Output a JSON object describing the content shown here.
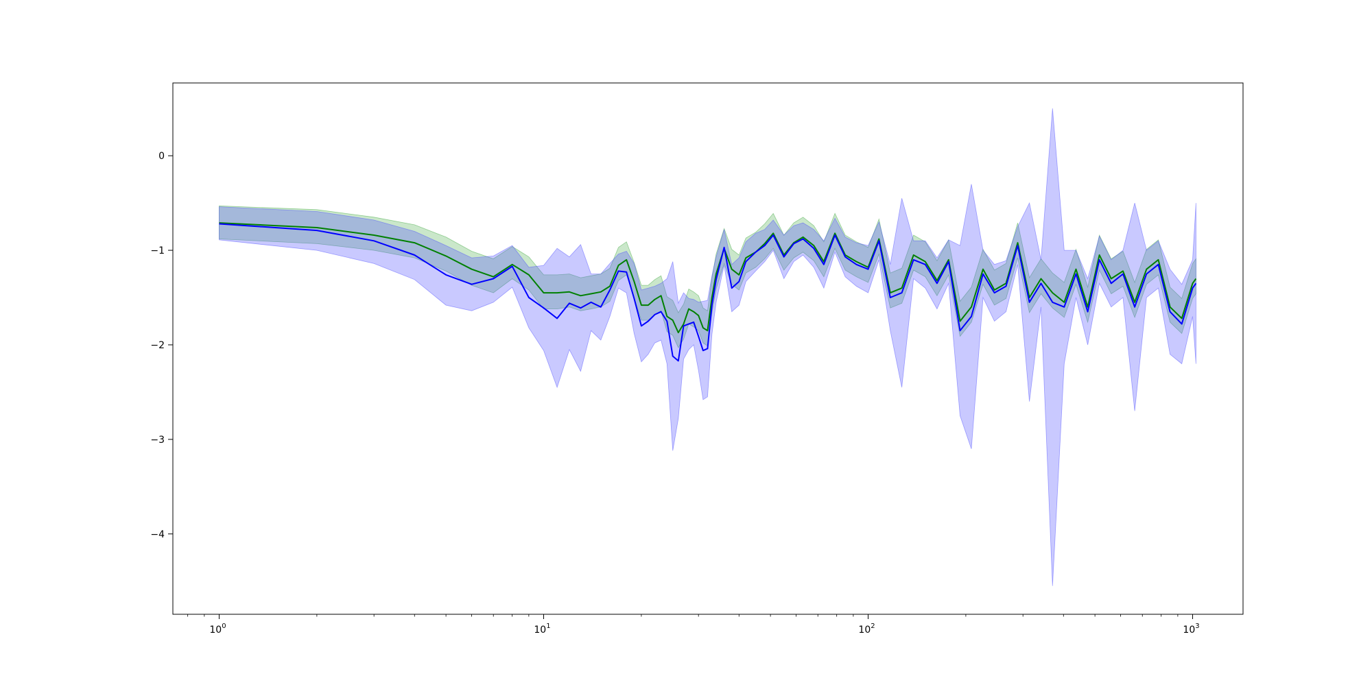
{
  "chart_data": {
    "type": "line",
    "title": "",
    "xlabel": "",
    "ylabel": "",
    "xscale": "log",
    "xlim": [
      0.72,
      1430
    ],
    "ylim": [
      -4.85,
      0.77
    ],
    "grid": false,
    "legend": "none",
    "x_ticks": [
      {
        "value": 1,
        "base": "10",
        "exp": "0"
      },
      {
        "value": 10,
        "base": "10",
        "exp": "1"
      },
      {
        "value": 100,
        "base": "10",
        "exp": "2"
      },
      {
        "value": 1000,
        "base": "10",
        "exp": "3"
      }
    ],
    "y_ticks": [
      {
        "value": 0,
        "label": "0"
      },
      {
        "value": -1,
        "label": "−1"
      },
      {
        "value": -2,
        "label": "−2"
      },
      {
        "value": -3,
        "label": "−3"
      },
      {
        "value": -4,
        "label": "−4"
      }
    ],
    "series": [
      {
        "color": "#008000",
        "band_color": "#2ca02c",
        "band_opacity": 0.25,
        "x": [
          1,
          2,
          3,
          4,
          5,
          6,
          7,
          8,
          9,
          10,
          11,
          12,
          13,
          14,
          15,
          16,
          17,
          18,
          19,
          20,
          21,
          22,
          23,
          24,
          25,
          26,
          27,
          28,
          29,
          30,
          31,
          32,
          33,
          34,
          36,
          38,
          40,
          42,
          45,
          48,
          51,
          55,
          59,
          63,
          68,
          73,
          79,
          85,
          92,
          100,
          108,
          117,
          127,
          138,
          150,
          163,
          177,
          192,
          208,
          226,
          245,
          266,
          289,
          314,
          341,
          370,
          402,
          437,
          475,
          516,
          561,
          610,
          663,
          721,
          784,
          852,
          926,
          1000,
          1024
        ],
        "mean": [
          -0.71,
          -0.76,
          -0.84,
          -0.92,
          -1.06,
          -1.2,
          -1.28,
          -1.15,
          -1.26,
          -1.45,
          -1.45,
          -1.44,
          -1.48,
          -1.46,
          -1.44,
          -1.38,
          -1.16,
          -1.1,
          -1.33,
          -1.58,
          -1.58,
          -1.52,
          -1.48,
          -1.7,
          -1.74,
          -1.87,
          -1.78,
          -1.62,
          -1.65,
          -1.69,
          -1.82,
          -1.85,
          -1.5,
          -1.25,
          -0.98,
          -1.2,
          -1.26,
          -1.08,
          -1.02,
          -0.93,
          -0.82,
          -1.05,
          -0.92,
          -0.86,
          -0.95,
          -1.12,
          -0.82,
          -1.05,
          -1.12,
          -1.18,
          -0.88,
          -1.45,
          -1.4,
          -1.05,
          -1.12,
          -1.32,
          -1.1,
          -1.75,
          -1.6,
          -1.2,
          -1.42,
          -1.35,
          -0.92,
          -1.5,
          -1.3,
          -1.45,
          -1.55,
          -1.2,
          -1.6,
          -1.05,
          -1.3,
          -1.22,
          -1.55,
          -1.2,
          -1.1,
          -1.6,
          -1.72,
          -1.35,
          -1.3
        ],
        "lower": [
          -0.88,
          -0.93,
          -1.0,
          -1.08,
          -1.22,
          -1.37,
          -1.45,
          -1.3,
          -1.42,
          -1.62,
          -1.62,
          -1.6,
          -1.64,
          -1.62,
          -1.6,
          -1.54,
          -1.32,
          -1.26,
          -1.5,
          -1.74,
          -1.74,
          -1.68,
          -1.64,
          -1.86,
          -1.9,
          -2.03,
          -1.94,
          -1.78,
          -1.81,
          -1.85,
          -1.98,
          -2.01,
          -1.66,
          -1.41,
          -1.14,
          -1.36,
          -1.42,
          -1.24,
          -1.18,
          -1.09,
          -0.98,
          -1.21,
          -1.08,
          -1.02,
          -1.11,
          -1.28,
          -0.98,
          -1.21,
          -1.28,
          -1.34,
          -1.04,
          -1.61,
          -1.56,
          -1.21,
          -1.28,
          -1.48,
          -1.26,
          -1.91,
          -1.76,
          -1.36,
          -1.58,
          -1.51,
          -1.08,
          -1.66,
          -1.46,
          -1.61,
          -1.71,
          -1.36,
          -1.76,
          -1.21,
          -1.46,
          -1.38,
          -1.71,
          -1.36,
          -1.26,
          -1.76,
          -1.88,
          -1.51,
          -1.46
        ],
        "upper": [
          -0.53,
          -0.57,
          -0.65,
          -0.73,
          -0.86,
          -1.01,
          -1.09,
          -0.96,
          -1.07,
          -1.26,
          -1.26,
          -1.25,
          -1.29,
          -1.27,
          -1.25,
          -1.19,
          -0.97,
          -0.91,
          -1.13,
          -1.37,
          -1.37,
          -1.31,
          -1.27,
          -1.49,
          -1.53,
          -1.66,
          -1.57,
          -1.41,
          -1.44,
          -1.48,
          -1.61,
          -1.64,
          -1.29,
          -1.04,
          -0.77,
          -0.99,
          -1.05,
          -0.87,
          -0.81,
          -0.72,
          -0.61,
          -0.84,
          -0.71,
          -0.65,
          -0.74,
          -0.91,
          -0.61,
          -0.84,
          -0.91,
          -0.97,
          -0.67,
          -1.24,
          -1.19,
          -0.84,
          -0.91,
          -1.11,
          -0.89,
          -1.54,
          -1.39,
          -0.99,
          -1.21,
          -1.14,
          -0.71,
          -1.29,
          -1.09,
          -1.24,
          -1.34,
          -0.99,
          -1.39,
          -0.84,
          -1.09,
          -1.01,
          -1.34,
          -0.99,
          -0.89,
          -1.39,
          -1.51,
          -1.14,
          -1.09
        ]
      },
      {
        "color": "#0000ff",
        "band_color": "#4d4dff",
        "band_opacity": 0.3,
        "x": [
          1,
          2,
          3,
          4,
          5,
          6,
          7,
          8,
          9,
          10,
          11,
          12,
          13,
          14,
          15,
          16,
          17,
          18,
          19,
          20,
          21,
          22,
          23,
          24,
          25,
          26,
          27,
          28,
          29,
          30,
          31,
          32,
          33,
          34,
          36,
          38,
          40,
          42,
          45,
          48,
          51,
          55,
          59,
          63,
          68,
          73,
          79,
          85,
          92,
          100,
          108,
          117,
          127,
          138,
          150,
          163,
          177,
          192,
          208,
          226,
          245,
          266,
          289,
          314,
          341,
          370,
          402,
          437,
          475,
          516,
          561,
          610,
          663,
          721,
          784,
          852,
          926,
          1000,
          1024
        ],
        "mean": [
          -0.72,
          -0.79,
          -0.9,
          -1.05,
          -1.26,
          -1.36,
          -1.3,
          -1.17,
          -1.5,
          -1.61,
          -1.72,
          -1.56,
          -1.61,
          -1.55,
          -1.6,
          -1.42,
          -1.22,
          -1.23,
          -1.51,
          -1.8,
          -1.75,
          -1.68,
          -1.65,
          -1.75,
          -2.12,
          -2.17,
          -1.8,
          -1.78,
          -1.76,
          -1.91,
          -2.06,
          -2.04,
          -1.58,
          -1.31,
          -0.97,
          -1.4,
          -1.33,
          -1.12,
          -1.02,
          -0.95,
          -0.84,
          -1.07,
          -0.93,
          -0.88,
          -0.98,
          -1.15,
          -0.84,
          -1.07,
          -1.15,
          -1.2,
          -0.9,
          -1.5,
          -1.45,
          -1.1,
          -1.15,
          -1.35,
          -1.12,
          -1.85,
          -1.7,
          -1.25,
          -1.45,
          -1.38,
          -0.95,
          -1.55,
          -1.35,
          -1.55,
          -1.6,
          -1.25,
          -1.65,
          -1.1,
          -1.35,
          -1.25,
          -1.6,
          -1.25,
          -1.15,
          -1.65,
          -1.78,
          -1.4,
          -1.35
        ],
        "lower": [
          -0.89,
          -1.0,
          -1.14,
          -1.31,
          -1.58,
          -1.64,
          -1.55,
          -1.39,
          -1.82,
          -2.06,
          -2.45,
          -2.05,
          -2.28,
          -1.85,
          -1.95,
          -1.7,
          -1.4,
          -1.45,
          -1.88,
          -2.18,
          -2.1,
          -1.98,
          -1.95,
          -2.2,
          -3.12,
          -2.78,
          -2.15,
          -2.05,
          -2.0,
          -2.27,
          -2.58,
          -2.55,
          -1.89,
          -1.55,
          -1.16,
          -1.65,
          -1.58,
          -1.33,
          -1.22,
          -1.12,
          -1.0,
          -1.3,
          -1.12,
          -1.05,
          -1.18,
          -1.4,
          -1.02,
          -1.28,
          -1.38,
          -1.45,
          -1.1,
          -1.85,
          -2.45,
          -1.3,
          -1.4,
          -1.62,
          -1.35,
          -2.75,
          -3.1,
          -1.5,
          -1.75,
          -1.65,
          -1.15,
          -2.6,
          -1.6,
          -4.55,
          -2.2,
          -1.5,
          -2.0,
          -1.35,
          -1.6,
          -1.5,
          -2.7,
          -1.5,
          -1.4,
          -2.1,
          -2.2,
          -1.7,
          -2.2
        ],
        "upper": [
          -0.54,
          -0.59,
          -0.68,
          -0.8,
          -0.95,
          -1.08,
          -1.06,
          -0.95,
          -1.18,
          -1.16,
          -0.98,
          -1.07,
          -0.94,
          -1.25,
          -1.25,
          -1.14,
          -1.04,
          -1.01,
          -1.14,
          -1.42,
          -1.4,
          -1.38,
          -1.35,
          -1.3,
          -1.12,
          -1.56,
          -1.45,
          -1.51,
          -1.52,
          -1.55,
          -1.54,
          -1.53,
          -1.27,
          -1.07,
          -0.78,
          -1.15,
          -1.08,
          -0.91,
          -0.82,
          -0.78,
          -0.68,
          -0.84,
          -0.74,
          -0.71,
          -0.78,
          -0.9,
          -0.66,
          -0.86,
          -0.92,
          -0.95,
          -0.7,
          -1.15,
          -0.45,
          -0.9,
          -0.9,
          -1.08,
          -0.89,
          -0.95,
          -0.3,
          -1.0,
          -1.15,
          -1.11,
          -0.75,
          -0.5,
          -1.1,
          0.5,
          -1.0,
          -1.0,
          -1.3,
          -0.85,
          -1.1,
          -1.0,
          -0.5,
          -1.0,
          -0.9,
          -1.2,
          -1.36,
          -1.1,
          -0.5
        ]
      }
    ]
  }
}
